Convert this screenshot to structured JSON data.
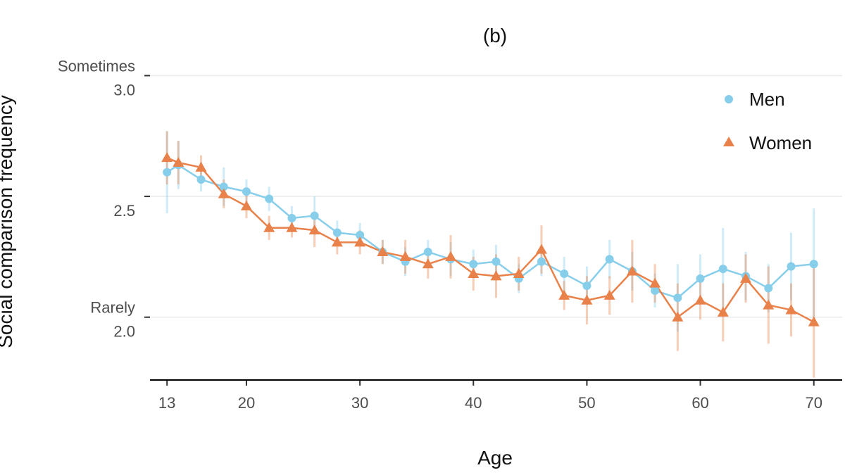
{
  "chart_data": {
    "type": "line",
    "title": "(b)",
    "xlabel": "Age",
    "ylabel": "Social comparison frequency",
    "xlim": [
      11.5,
      72.5
    ],
    "ylim": [
      1.74,
      3.08
    ],
    "x_ticks": [
      13,
      20,
      30,
      40,
      50,
      60,
      70
    ],
    "x_tick_labels": [
      "13",
      "20",
      "30",
      "40",
      "50",
      "60",
      "70"
    ],
    "y_ticks": [
      {
        "value": 3.0,
        "label": "3.0",
        "text_label": "Sometimes"
      },
      {
        "value": 2.5,
        "label": "2.5",
        "text_label": ""
      },
      {
        "value": 2.0,
        "label": "2.0",
        "text_label": "Rarely"
      }
    ],
    "legend": {
      "position": "top-right"
    },
    "series": [
      {
        "name": "Men",
        "color": "#87CEEB",
        "marker": "circle",
        "x": [
          13,
          14,
          16,
          18,
          20,
          22,
          24,
          26,
          28,
          30,
          32,
          34,
          36,
          38,
          40,
          42,
          44,
          46,
          48,
          50,
          52,
          54,
          56,
          58,
          60,
          62,
          64,
          66,
          68,
          70
        ],
        "y": [
          2.6,
          2.63,
          2.57,
          2.54,
          2.52,
          2.49,
          2.41,
          2.42,
          2.35,
          2.34,
          2.27,
          2.23,
          2.27,
          2.24,
          2.22,
          2.23,
          2.16,
          2.23,
          2.18,
          2.13,
          2.24,
          2.19,
          2.11,
          2.08,
          2.16,
          2.2,
          2.17,
          2.12,
          2.21,
          2.22
        ],
        "err": [
          0.17,
          0.1,
          0.05,
          0.08,
          0.05,
          0.05,
          0.05,
          0.08,
          0.05,
          0.05,
          0.05,
          0.06,
          0.05,
          0.07,
          0.06,
          0.07,
          0.06,
          0.06,
          0.07,
          0.08,
          0.08,
          0.08,
          0.07,
          0.14,
          0.1,
          0.17,
          0.1,
          0.1,
          0.14,
          0.23
        ]
      },
      {
        "name": "Women",
        "color": "#E8824A",
        "marker": "triangle",
        "x": [
          13,
          14,
          16,
          18,
          20,
          22,
          24,
          26,
          28,
          30,
          32,
          34,
          36,
          38,
          40,
          42,
          44,
          46,
          48,
          50,
          52,
          54,
          56,
          58,
          60,
          62,
          64,
          66,
          68,
          70
        ],
        "y": [
          2.66,
          2.64,
          2.62,
          2.51,
          2.46,
          2.37,
          2.37,
          2.36,
          2.31,
          2.31,
          2.27,
          2.25,
          2.22,
          2.25,
          2.18,
          2.17,
          2.18,
          2.28,
          2.09,
          2.07,
          2.09,
          2.19,
          2.14,
          2.0,
          2.07,
          2.02,
          2.16,
          2.05,
          2.03,
          1.98
        ],
        "err": [
          0.11,
          0.09,
          0.05,
          0.06,
          0.05,
          0.05,
          0.04,
          0.07,
          0.05,
          0.05,
          0.05,
          0.07,
          0.06,
          0.09,
          0.07,
          0.09,
          0.07,
          0.1,
          0.06,
          0.1,
          0.08,
          0.13,
          0.08,
          0.14,
          0.08,
          0.12,
          0.1,
          0.16,
          0.11,
          0.23
        ]
      }
    ]
  }
}
